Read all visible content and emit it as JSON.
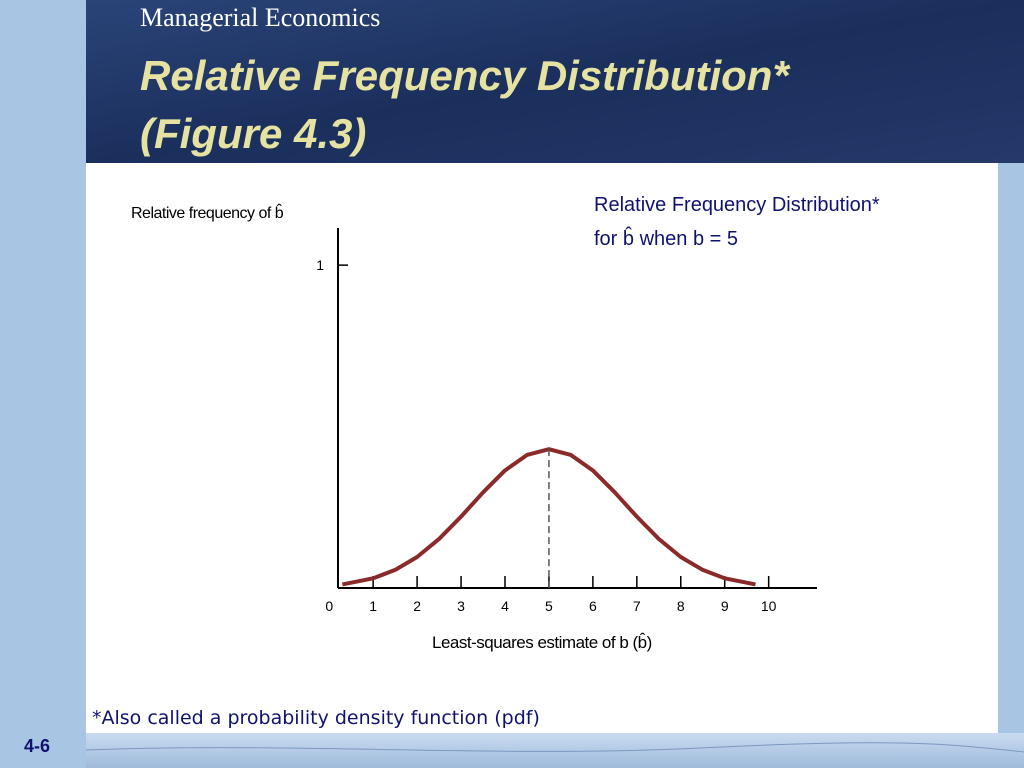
{
  "slide": {
    "course": "Managerial Economics",
    "title_lines": [
      "Relative Frequency Distribution*",
      "(Figure 4.3)"
    ],
    "footnote": "*Also called a probability density function (pdf)",
    "slide_number": "4-6"
  },
  "chart_data": {
    "type": "line",
    "title_lines": [
      "Relative Frequency Distribution*",
      "for b̂ when b = 5"
    ],
    "y_label": "Relative frequency of b̂",
    "x_label": "Least-squares estimate of b (b̂)",
    "x": [
      0.3,
      1,
      1.5,
      2,
      2.5,
      3,
      3.5,
      4,
      4.5,
      5,
      5.5,
      6,
      6.5,
      7,
      7.5,
      8,
      8.5,
      9,
      9.7
    ],
    "series": [
      {
        "color": "#8b2a2a",
        "values": [
          0.011,
          0.03,
          0.056,
          0.096,
          0.152,
          0.221,
          0.296,
          0.364,
          0.412,
          0.43,
          0.412,
          0.364,
          0.296,
          0.221,
          0.152,
          0.096,
          0.056,
          0.03,
          0.011
        ]
      }
    ],
    "mean": 5,
    "xlim": [
      0.2,
      11.1
    ],
    "xticks": [
      0,
      1,
      2,
      3,
      4,
      5,
      6,
      7,
      8,
      9,
      10
    ],
    "ylim": [
      0,
      1.115
    ],
    "yticks": [
      1
    ]
  }
}
